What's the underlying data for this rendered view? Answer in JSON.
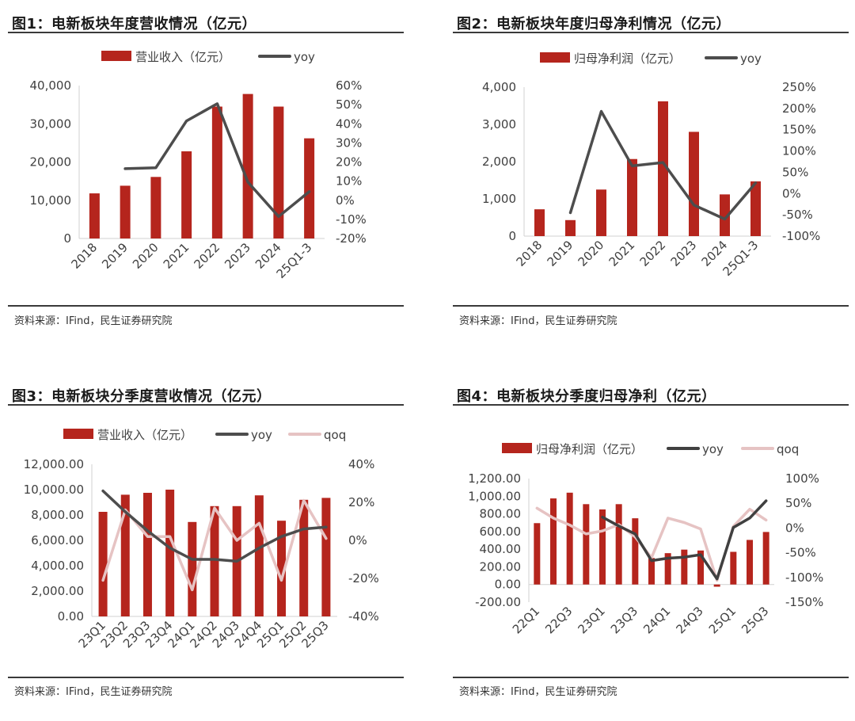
{
  "chart_data": [
    {
      "type": "bar",
      "title": "图1：电新板块年度营收情况（亿元）",
      "source": "资料来源：IFind，民生证券研究院",
      "categories": [
        "2018",
        "2019",
        "2020",
        "2021",
        "2022",
        "2023",
        "2024",
        "25Q1-3"
      ],
      "series": [
        {
          "name": "营业收入（亿元）",
          "kind": "bar",
          "axis": "left",
          "color": "#b5251d",
          "values": [
            11800,
            13800,
            16100,
            22800,
            34500,
            37800,
            34500,
            26200
          ]
        },
        {
          "name": "yoy",
          "kind": "line",
          "axis": "right",
          "color": "#4d4d4d",
          "values": [
            null,
            16.5,
            17.0,
            41.5,
            50.5,
            9.5,
            -8.5,
            4.5
          ]
        }
      ],
      "ylim_left": [
        0,
        40000
      ],
      "ylim_right": [
        -20,
        60
      ],
      "yticks_left": [
        "0",
        "10,000",
        "20,000",
        "30,000",
        "40,000"
      ],
      "yticks_right": [
        "-20%",
        "-10%",
        "0%",
        "10%",
        "20%",
        "30%",
        "40%",
        "50%",
        "60%"
      ]
    },
    {
      "type": "bar",
      "title": "图2：电新板块年度归母净利情况（亿元）",
      "source": "资料来源：IFind，民生证券研究院",
      "categories": [
        "2018",
        "2019",
        "2020",
        "2021",
        "2022",
        "2023",
        "2024",
        "25Q1-3"
      ],
      "series": [
        {
          "name": "归母净利润（亿元）",
          "kind": "bar",
          "axis": "left",
          "color": "#b5251d",
          "values": [
            720,
            430,
            1250,
            2070,
            3620,
            2800,
            1120,
            1470
          ]
        },
        {
          "name": "yoy",
          "kind": "line",
          "axis": "right",
          "color": "#4d4d4d",
          "values": [
            null,
            -45,
            193,
            65,
            73,
            -27,
            -60,
            25
          ]
        }
      ],
      "ylim_left": [
        0,
        4000
      ],
      "ylim_right": [
        -100,
        250
      ],
      "yticks_left": [
        "0",
        "1,000",
        "2,000",
        "3,000",
        "4,000"
      ],
      "yticks_right": [
        "-100%",
        "-50%",
        "0%",
        "50%",
        "100%",
        "150%",
        "200%",
        "250%"
      ]
    },
    {
      "type": "bar",
      "title": "图3：电新板块分季度营收情况（亿元）",
      "source": "资料来源：IFind，民生证券研究院",
      "categories": [
        "23Q1",
        "23Q2",
        "23Q3",
        "23Q4",
        "24Q1",
        "24Q2",
        "24Q3",
        "24Q4",
        "25Q1",
        "25Q2",
        "25Q3"
      ],
      "series": [
        {
          "name": "营业收入（亿元）",
          "kind": "bar",
          "axis": "left",
          "color": "#b5251d",
          "values": [
            8250,
            9600,
            9750,
            10000,
            7450,
            8700,
            8700,
            9550,
            7550,
            9200,
            9350
          ]
        },
        {
          "name": "yoy",
          "kind": "line",
          "axis": "right",
          "color": "#4d4d4d",
          "values": [
            26,
            15,
            5,
            -4,
            -10,
            -10,
            -11,
            -4,
            2,
            6,
            7
          ]
        },
        {
          "name": "qoq",
          "kind": "line",
          "axis": "right",
          "color": "#e6c3c3",
          "values": [
            -21,
            16,
            2,
            2,
            -26,
            17,
            0,
            9,
            -21,
            21,
            1
          ]
        }
      ],
      "ylim_left": [
        0,
        12000
      ],
      "ylim_right": [
        -40,
        40
      ],
      "yticks_left": [
        "0.00",
        "2,000.00",
        "4,000.00",
        "6,000.00",
        "8,000.00",
        "10,000.00",
        "12,000.00"
      ],
      "yticks_right": [
        "-40%",
        "-20%",
        "0%",
        "20%",
        "40%"
      ]
    },
    {
      "type": "bar",
      "title": "图4：电新板块分季度归母净利（亿元）",
      "source": "资料来源：IFind，民生证券研究院",
      "categories": [
        "22Q1",
        "22Q2",
        "22Q3",
        "22Q4",
        "23Q1",
        "23Q2",
        "23Q3",
        "23Q4",
        "24Q1",
        "24Q2",
        "24Q3",
        "24Q4",
        "25Q1",
        "25Q2",
        "25Q3"
      ],
      "xticks_shown": [
        "22Q1",
        "22Q3",
        "23Q1",
        "23Q3",
        "24Q1",
        "24Q3",
        "25Q1",
        "25Q3"
      ],
      "series": [
        {
          "name": "归母净利润（亿元）",
          "kind": "bar",
          "axis": "left",
          "color": "#b5251d",
          "values": [
            695,
            975,
            1040,
            910,
            850,
            910,
            750,
            300,
            355,
            395,
            385,
            -25,
            370,
            505,
            595
          ]
        },
        {
          "name": "yoy",
          "kind": "line",
          "axis": "right",
          "color": "#404040",
          "values": [
            null,
            null,
            null,
            null,
            22,
            4,
            -12,
            -66,
            -61,
            -59,
            -54,
            -103,
            1,
            20,
            55
          ]
        },
        {
          "name": "qoq",
          "kind": "line",
          "axis": "right",
          "color": "#e6c3c3",
          "values": [
            40,
            20,
            6,
            -12,
            -6,
            7,
            -18,
            -60,
            20,
            11,
            -2,
            -106,
            3,
            38,
            16
          ]
        }
      ],
      "ylim_left": [
        -200,
        1200
      ],
      "ylim_right": [
        -150,
        100
      ],
      "yticks_left": [
        "-200.00",
        "0.00",
        "200.00",
        "400.00",
        "600.00",
        "800.00",
        "1,000.00",
        "1,200.00"
      ],
      "yticks_right": [
        "-150%",
        "-100%",
        "-50%",
        "0%",
        "50%",
        "100%"
      ]
    }
  ]
}
